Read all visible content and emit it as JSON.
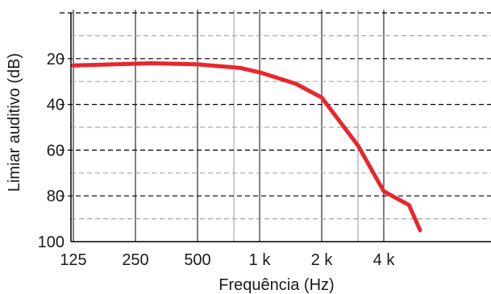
{
  "chart_data": {
    "type": "line",
    "x_scale": "log",
    "y_inverted": true,
    "xlabel": "Frequência (Hz)",
    "ylabel": "Limiar auditivo (dB)",
    "xlim": [
      125,
      6000
    ],
    "ylim": [
      100,
      0
    ],
    "x_ticks": [
      {
        "value": 125,
        "label": "125"
      },
      {
        "value": 250,
        "label": "250"
      },
      {
        "value": 500,
        "label": "500"
      },
      {
        "value": 1000,
        "label": "1 k"
      },
      {
        "value": 2000,
        "label": "2 k"
      },
      {
        "value": 4000,
        "label": "4 k"
      }
    ],
    "x_minor_grid": [
      750,
      3000
    ],
    "y_ticks": [
      {
        "value": 20,
        "label": "20"
      },
      {
        "value": 40,
        "label": "40"
      },
      {
        "value": 60,
        "label": "60"
      },
      {
        "value": 80,
        "label": "80"
      },
      {
        "value": 100,
        "label": "100"
      }
    ],
    "y_major_grid": [
      0,
      20,
      40,
      60,
      80
    ],
    "y_minor_grid": [
      10,
      30,
      50,
      70,
      90
    ],
    "grid": true,
    "series_color": "#e8262d",
    "series": [
      {
        "x": [
          125,
          300,
          500,
          800,
          1000,
          1500,
          2000,
          3000,
          4000,
          5300,
          6000
        ],
        "y": [
          23,
          22,
          22.5,
          24,
          26,
          31,
          37,
          58,
          78,
          84,
          95
        ]
      }
    ]
  }
}
